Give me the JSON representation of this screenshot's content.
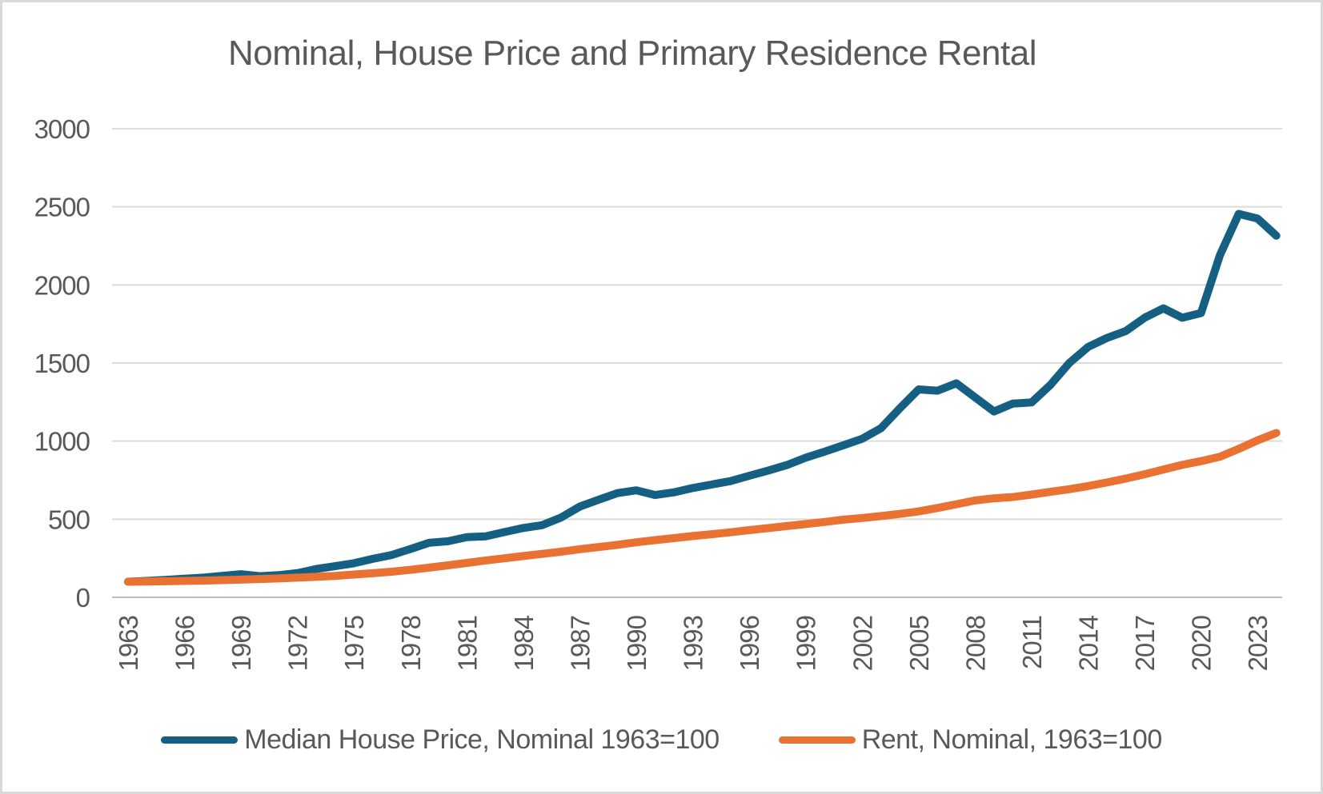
{
  "window": {
    "background_color": "#ffffff",
    "border_color": "#d9d9d9"
  },
  "chart_data": {
    "type": "line",
    "title": "Nominal, House Price and Primary Residence Rental",
    "xlabel": "",
    "ylabel": "",
    "ylim": [
      0,
      3000
    ],
    "grid": "horizontal",
    "legend_position": "bottom",
    "text_color": "#595959",
    "gridline_color": "#dbdbdb",
    "axisline_color": "#bfbfbf",
    "yticks": [
      0,
      500,
      1000,
      1500,
      2000,
      2500,
      3000
    ],
    "xticks": [
      1963,
      1966,
      1969,
      1972,
      1975,
      1978,
      1981,
      1984,
      1987,
      1990,
      1993,
      1996,
      1999,
      2002,
      2005,
      2008,
      2011,
      2014,
      2017,
      2020,
      2023
    ],
    "x": [
      1963,
      1964,
      1965,
      1966,
      1967,
      1968,
      1969,
      1970,
      1971,
      1972,
      1973,
      1974,
      1975,
      1976,
      1977,
      1978,
      1979,
      1980,
      1981,
      1982,
      1983,
      1984,
      1985,
      1986,
      1987,
      1988,
      1989,
      1990,
      1991,
      1992,
      1993,
      1994,
      1995,
      1996,
      1997,
      1998,
      1999,
      2000,
      2001,
      2002,
      2003,
      2004,
      2005,
      2006,
      2007,
      2008,
      2009,
      2010,
      2011,
      2012,
      2013,
      2014,
      2015,
      2016,
      2017,
      2018,
      2019,
      2020,
      2021,
      2022,
      2023,
      2024
    ],
    "series": [
      {
        "name": "Median House Price, Nominal 1963=100",
        "color": "#156082",
        "values": [
          100,
          105,
          111,
          119,
          126,
          137,
          148,
          135,
          142,
          155,
          181,
          199,
          218,
          246,
          271,
          309,
          349,
          359,
          385,
          390,
          418,
          444,
          462,
          511,
          581,
          625,
          667,
          685,
          655,
          672,
          700,
          722,
          744,
          778,
          811,
          847,
          894,
          932,
          973,
          1015,
          1083,
          1210,
          1331,
          1323,
          1370,
          1280,
          1190,
          1240,
          1248,
          1360,
          1500,
          1603,
          1660,
          1705,
          1790,
          1850,
          1790,
          1820,
          2190,
          2455,
          2425,
          2315
        ]
      },
      {
        "name": "Rent, Nominal, 1963=100",
        "color": "#E97132",
        "values": [
          100,
          101,
          103,
          105,
          107,
          110,
          113,
          117,
          121,
          126,
          131,
          137,
          146,
          154,
          164,
          176,
          190,
          205,
          220,
          236,
          250,
          264,
          278,
          292,
          308,
          322,
          336,
          352,
          366,
          379,
          392,
          404,
          416,
          430,
          443,
          456,
          469,
          482,
          497,
          508,
          520,
          534,
          550,
          572,
          596,
          620,
          634,
          642,
          658,
          675,
          692,
          712,
          735,
          760,
          788,
          818,
          848,
          872,
          900,
          950,
          1005,
          1052
        ]
      }
    ]
  }
}
